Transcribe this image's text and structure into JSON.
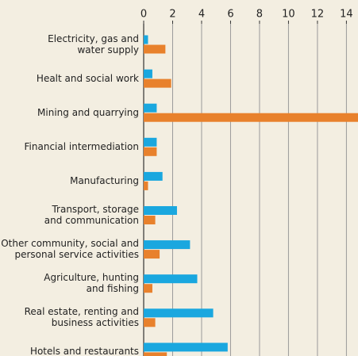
{
  "chart_data": {
    "type": "hbar",
    "categories": [
      "Electricity, gas and\nwater supply",
      "Healt and social work",
      "Mining and quarrying",
      "Financial intermediation",
      "Manufacturing",
      "Transport, storage\nand communication",
      "Other community, social and\npersonal service activities",
      "Agriculture, hunting\nand fishing",
      "Real estate, renting and\nbusiness activities",
      "Hotels and restaurants"
    ],
    "series": [
      {
        "color": "#1aa7df",
        "values": [
          0.3,
          0.6,
          0.9,
          0.9,
          1.3,
          2.3,
          3.2,
          3.7,
          4.8,
          5.8
        ]
      },
      {
        "color": "#e8812c",
        "values": [
          1.5,
          1.9,
          15,
          0.9,
          0.3,
          0.8,
          1.1,
          0.6,
          0.8,
          1.6
        ]
      }
    ],
    "xlim": [
      0,
      14.8
    ],
    "xticks": [
      0,
      2,
      4,
      6,
      8,
      10,
      12,
      14
    ],
    "grid": true
  }
}
